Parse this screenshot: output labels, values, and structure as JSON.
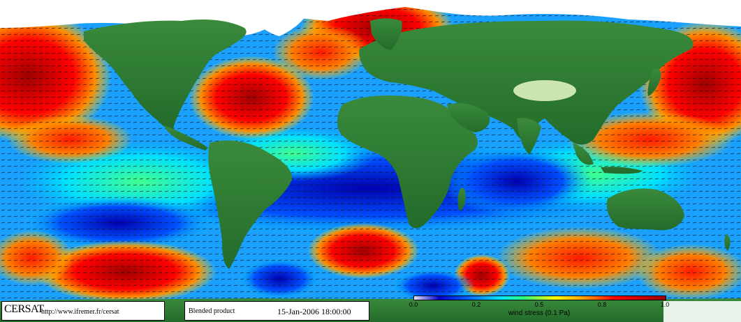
{
  "logo": {
    "name": "CERSAT",
    "url": "http://www.ifremer.fr/cersat"
  },
  "product": {
    "label": "Blended product",
    "date": "15-Jan-2006 18:00:00"
  },
  "scale": {
    "ticks": [
      "0.0",
      "0.2",
      "0.5",
      "0.8",
      "1.0"
    ],
    "label": "wind stress (0.1 Pa)"
  },
  "colors": {
    "ocean_low": "#0000c8",
    "ocean_mid": "#00e6ff",
    "ocean_high": "#ff0000",
    "land": "#2e7d32",
    "ice": "#ffffff"
  }
}
